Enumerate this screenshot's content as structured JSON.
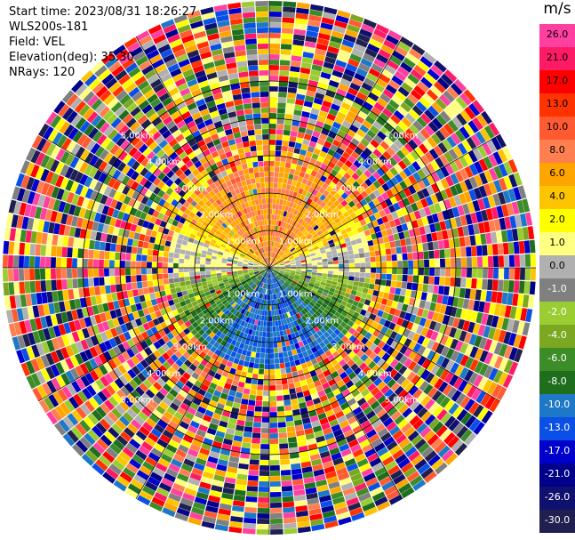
{
  "header": {
    "start_time": "Start time: 2023/08/31 18:26:27",
    "site": "WLS200s-181",
    "field": "Field: VEL",
    "elevation": "Elevation(deg): 35.30",
    "nrays": "NRays: 120"
  },
  "colorbar": {
    "unit": "m/s",
    "ticks": [
      "26.0",
      "21.0",
      "17.0",
      "13.0",
      "10.0",
      "8.0",
      "6.0",
      "4.0",
      "2.0",
      "1.0",
      "0.0",
      "-1.0",
      "-2.0",
      "-4.0",
      "-6.0",
      "-8.0",
      "-10.0",
      "-13.0",
      "-17.0",
      "-21.0",
      "-26.0",
      "-30.0"
    ],
    "colors": [
      "#ff40a0",
      "#ff1a66",
      "#ff0000",
      "#ff3300",
      "#ff5a30",
      "#ff7f50",
      "#ffa500",
      "#ffc400",
      "#ffff00",
      "#ffff80",
      "#b0b0b0",
      "#808080",
      "#9acd32",
      "#7aa820",
      "#3c8c28",
      "#1e6e1e",
      "#1e78c8",
      "#0a50e6",
      "#0000cd",
      "#00008b",
      "#10106e",
      "#202050"
    ]
  },
  "chart_data": {
    "type": "heatmap",
    "projection": "polar PPI",
    "field": "VEL",
    "units": "m/s",
    "nrays": 120,
    "range_rings": [
      {
        "label": "1.00km"
      },
      {
        "label": "2.00km"
      },
      {
        "label": "3.00km"
      },
      {
        "label": "4.00km"
      },
      {
        "label": "5.00km"
      }
    ],
    "pattern": {
      "north_sector": "2.0 to 8.0 m/s (yellow/orange)",
      "south_sector": "-2.0 to -10.0 m/s (green/blue)",
      "outer_ranges": "noisy, all values"
    }
  }
}
